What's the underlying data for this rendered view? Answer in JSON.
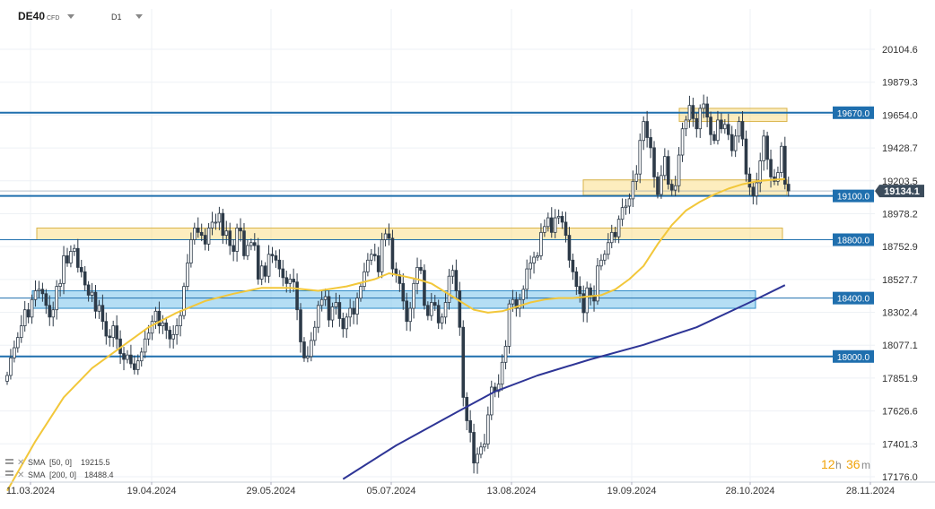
{
  "header": {
    "symbol": "DE40",
    "instrument_type": "CFD",
    "timeframe": "D1"
  },
  "indicators": [
    {
      "label": "SMA",
      "params": "[50, 0]",
      "value": "19215.5",
      "color": "#f2c73a"
    },
    {
      "label": "SMA",
      "params": "[200, 0]",
      "value": "18488.4",
      "color": "#2e3596"
    }
  ],
  "timer": {
    "hours": "12",
    "h_unit": "h",
    "minutes": "36",
    "m_unit": "m"
  },
  "chart_data": {
    "type": "candlestick",
    "ylim": [
      17176.0,
      20300.0
    ],
    "y_ticks": [
      "20104.6",
      "19879.3",
      "19654.0",
      "19428.7",
      "19203.5",
      "18978.2",
      "18752.9",
      "18527.7",
      "18302.4",
      "18077.1",
      "17851.9",
      "17626.6",
      "17401.3",
      "17176.0"
    ],
    "x_ticks": [
      "11.03.2024",
      "19.04.2024",
      "29.05.2024",
      "05.07.2024",
      "13.08.2024",
      "19.09.2024",
      "28.10.2024",
      "28.11.2024"
    ],
    "current_price": {
      "label": "19134.1",
      "value": 19134.1
    },
    "levels": [
      {
        "label": "19670.0",
        "value": 19670.0
      },
      {
        "label": "19100.0",
        "value": 19100.0
      },
      {
        "label": "18800.0",
        "value": 18800.0
      },
      {
        "label": "18400.0",
        "value": 18400.0
      },
      {
        "label": "18000.0",
        "value": 18000.0
      }
    ],
    "zones": [
      {
        "name": "resistance-19670",
        "color": "yellow",
        "from": 19610,
        "to": 19700
      },
      {
        "name": "support-19100",
        "color": "yellow",
        "from": 19105,
        "to": 19210
      },
      {
        "name": "zone-18800",
        "color": "yellow",
        "from": 18800,
        "to": 18880
      },
      {
        "name": "zone-18400",
        "color": "blue",
        "from": 18330,
        "to": 18450
      }
    ],
    "closes": [
      17870,
      17990,
      18060,
      18130,
      18210,
      18320,
      18270,
      18390,
      18450,
      18460,
      18430,
      18350,
      18270,
      18320,
      18480,
      18500,
      18690,
      18640,
      18720,
      18740,
      18610,
      18580,
      18490,
      18420,
      18440,
      18310,
      18350,
      18240,
      18140,
      18130,
      18210,
      18120,
      18020,
      17980,
      18010,
      17950,
      17910,
      17970,
      18030,
      18120,
      18160,
      18240,
      18310,
      18210,
      18230,
      18180,
      18120,
      18150,
      18210,
      18280,
      18480,
      18640,
      18800,
      18880,
      18850,
      18830,
      18770,
      18880,
      18920,
      18920,
      18980,
      18830,
      18860,
      18760,
      18720,
      18880,
      18860,
      18690,
      18760,
      18780,
      18760,
      18530,
      18620,
      18550,
      18700,
      18690,
      18660,
      18600,
      18540,
      18500,
      18530,
      18510,
      18320,
      18100,
      17990,
      18000,
      18110,
      18200,
      18350,
      18390,
      18410,
      18250,
      18340,
      18370,
      18260,
      18190,
      18270,
      18330,
      18290,
      18400,
      18480,
      18580,
      18660,
      18700,
      18690,
      18580,
      18800,
      18840,
      18810,
      18600,
      18560,
      18500,
      18380,
      18240,
      18330,
      18500,
      18610,
      18590,
      18350,
      18280,
      18370,
      18350,
      18230,
      18270,
      18370,
      18550,
      18590,
      18450,
      18200,
      17720,
      17560,
      17480,
      17270,
      17330,
      17380,
      17400,
      17600,
      17790,
      17760,
      17810,
      17960,
      18070,
      18360,
      18390,
      18330,
      18390,
      18460,
      18600,
      18640,
      18680,
      18690,
      18850,
      18890,
      18950,
      18850,
      18950,
      18960,
      18920,
      18830,
      18660,
      18580,
      18480,
      18430,
      18300,
      18470,
      18420,
      18380,
      18620,
      18660,
      18700,
      18780,
      18850,
      18820,
      18940,
      19020,
      19030,
      19080,
      19200,
      19250,
      19480,
      19610,
      19500,
      19430,
      19230,
      19110,
      19240,
      19370,
      19180,
      19140,
      19170,
      19380,
      19560,
      19620,
      19720,
      19630,
      19560,
      19700,
      19730,
      19640,
      19520,
      19480,
      19620,
      19560,
      19590,
      19520,
      19410,
      19510,
      19610,
      19490,
      19250,
      19160,
      19100,
      19190,
      19340,
      19510,
      19350,
      19230,
      19200,
      19260,
      19440,
      19180,
      19134.1
    ],
    "sma50": {
      "name": "SMA [50, 0]",
      "points": [
        [
          0,
          17080
        ],
        [
          8,
          17420
        ],
        [
          16,
          17720
        ],
        [
          24,
          17920
        ],
        [
          32,
          18060
        ],
        [
          40,
          18200
        ],
        [
          48,
          18300
        ],
        [
          56,
          18380
        ],
        [
          64,
          18430
        ],
        [
          72,
          18470
        ],
        [
          80,
          18470
        ],
        [
          88,
          18450
        ],
        [
          96,
          18480
        ],
        [
          104,
          18530
        ],
        [
          108,
          18570
        ],
        [
          112,
          18550
        ],
        [
          116,
          18530
        ],
        [
          120,
          18500
        ],
        [
          124,
          18440
        ],
        [
          128,
          18380
        ],
        [
          132,
          18320
        ],
        [
          136,
          18300
        ],
        [
          140,
          18310
        ],
        [
          144,
          18340
        ],
        [
          148,
          18370
        ],
        [
          152,
          18390
        ],
        [
          156,
          18400
        ],
        [
          160,
          18400
        ],
        [
          164,
          18410
        ],
        [
          168,
          18420
        ],
        [
          172,
          18460
        ],
        [
          176,
          18530
        ],
        [
          180,
          18620
        ],
        [
          184,
          18770
        ],
        [
          188,
          18900
        ],
        [
          192,
          19000
        ],
        [
          196,
          19060
        ],
        [
          200,
          19110
        ],
        [
          204,
          19150
        ],
        [
          208,
          19180
        ],
        [
          212,
          19200
        ],
        [
          216,
          19210
        ],
        [
          220,
          19215.5
        ]
      ]
    },
    "sma200": {
      "name": "SMA [200, 0]",
      "points": [
        [
          95,
          17160
        ],
        [
          110,
          17390
        ],
        [
          125,
          17590
        ],
        [
          138,
          17760
        ],
        [
          150,
          17870
        ],
        [
          165,
          17980
        ],
        [
          180,
          18080
        ],
        [
          195,
          18200
        ],
        [
          210,
          18370
        ],
        [
          220,
          18488.4
        ]
      ]
    }
  }
}
